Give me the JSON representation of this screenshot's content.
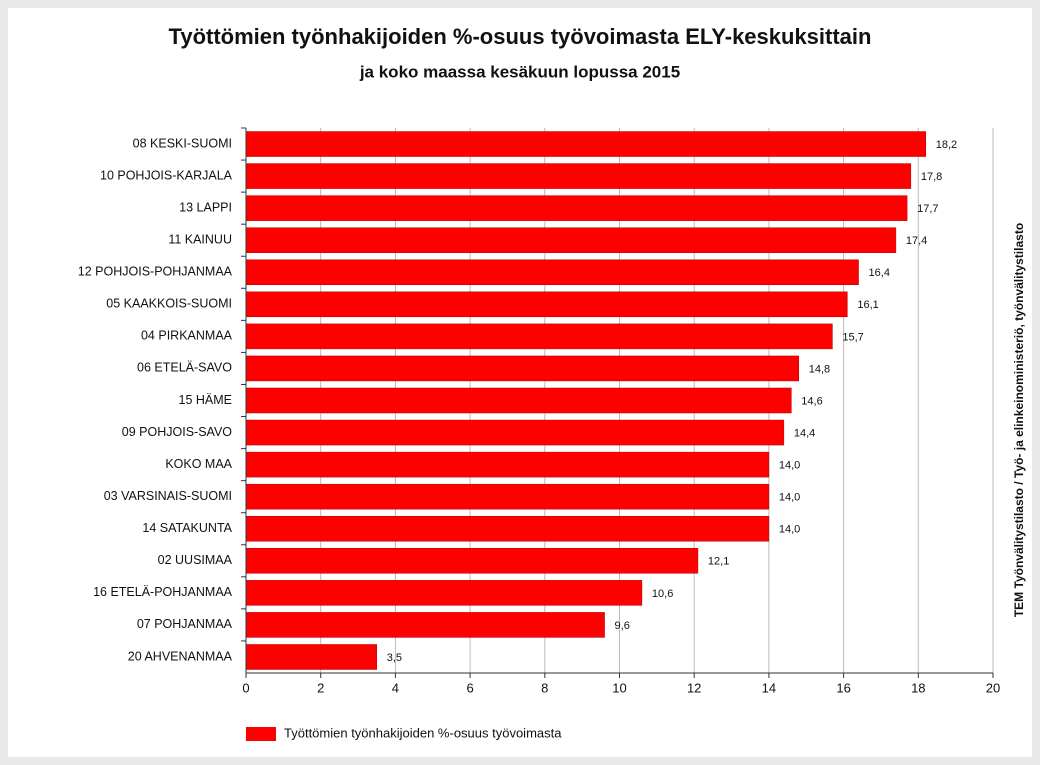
{
  "chart_data": {
    "type": "bar",
    "orientation": "horizontal",
    "title": "Työttömien työnhakijoiden %-osuus työvoimasta ELY-keskuksittain",
    "subtitle": "ja koko maassa kesäkuun lopussa 2015",
    "source": "TEM Työnvälitystilasto / Työ- ja elinkeinoministeriö, työnvälitystilasto",
    "categories": [
      "08 KESKI-SUOMI",
      "10 POHJOIS-KARJALA",
      "13 LAPPI",
      "11 KAINUU",
      "12 POHJOIS-POHJANMAA",
      "05 KAAKKOIS-SUOMI",
      "04 PIRKANMAA",
      "06 ETELÄ-SAVO",
      "15 HÄME",
      "09 POHJOIS-SAVO",
      "KOKO MAA",
      "03 VARSINAIS-SUOMI",
      "14 SATAKUNTA",
      "02 UUSIMAA",
      "16 ETELÄ-POHJANMAA",
      "07 POHJANMAA",
      "20 AHVENANMAA"
    ],
    "series": [
      {
        "name": "Työttömien työnhakijoiden %-osuus työvoimasta",
        "color": "#ff0000",
        "values": [
          18.2,
          17.8,
          17.7,
          17.4,
          16.4,
          16.1,
          15.7,
          14.8,
          14.6,
          14.4,
          14.0,
          14.0,
          14.0,
          12.1,
          10.6,
          9.6,
          3.5
        ],
        "value_labels": [
          "18,2",
          "17,8",
          "17,7",
          "17,4",
          "16,4",
          "16,1",
          "15,7",
          "14,8",
          "14,6",
          "14,4",
          "14,0",
          "14,0",
          "14,0",
          "12,1",
          "10,6",
          "9,6",
          "3,5"
        ]
      }
    ],
    "xlim": [
      0,
      20
    ],
    "xticks": [
      0,
      2,
      4,
      6,
      8,
      10,
      12,
      14,
      16,
      18,
      20
    ],
    "grid": true,
    "legend": "bottom-left"
  }
}
